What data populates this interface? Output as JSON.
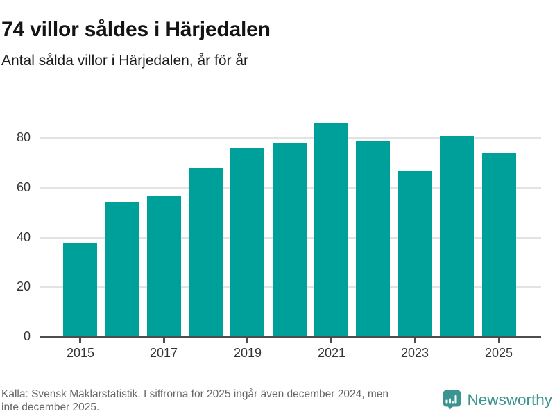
{
  "header": {
    "title": "74 villor såldes i Härjedalen",
    "subtitle": "Antal sålda villor i Härjedalen, år för år"
  },
  "chart_data": {
    "type": "bar",
    "categories": [
      "2015",
      "2016",
      "2017",
      "2018",
      "2019",
      "2020",
      "2021",
      "2022",
      "2023",
      "2024",
      "2025"
    ],
    "values": [
      38,
      54,
      57,
      68,
      76,
      78,
      86,
      79,
      67,
      81,
      74
    ],
    "title": "74 villor såldes i Härjedalen",
    "subtitle": "Antal sålda villor i Härjedalen, år för år",
    "xlabel": "",
    "ylabel": "",
    "ylim": [
      0,
      90
    ],
    "y_ticks": [
      0,
      20,
      40,
      60,
      80
    ],
    "x_tick_labels": [
      "2015",
      "2017",
      "2019",
      "2021",
      "2023",
      "2025"
    ],
    "grid": "horizontal",
    "legend": "none",
    "bar_color": "#00a09a"
  },
  "colors": {
    "bar": "#00a09a",
    "gridline": "#e3e3e3",
    "axis": "#4d4d4d",
    "title_text": "#141414",
    "axis_text": "#333333",
    "footer_text": "#666666",
    "brand_teal": "#3a948f"
  },
  "footer": {
    "source_line1": "Källa: Svensk Mäklarstatistik. I siffrorna för 2025 ingår även december 2024, men",
    "source_line2": "inte december 2025.",
    "brand_name": "Newsworthy"
  }
}
